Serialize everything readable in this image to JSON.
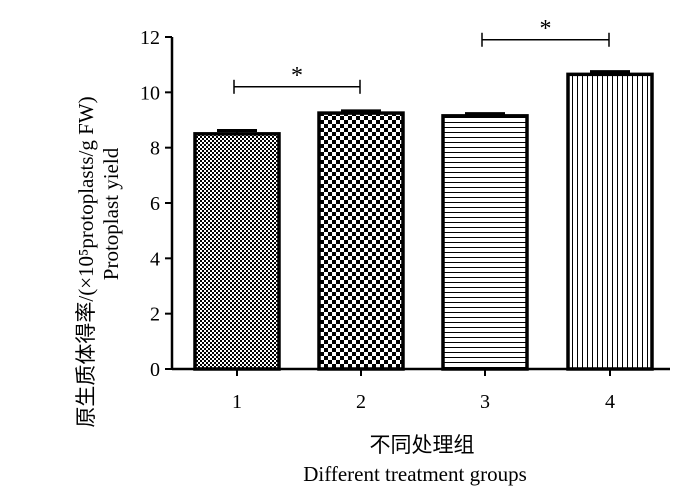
{
  "chart_data": {
    "type": "bar",
    "categories": [
      "1",
      "2",
      "3",
      "4"
    ],
    "values": [
      8.5,
      9.25,
      9.15,
      10.65
    ],
    "error": [
      0.12,
      0.08,
      0.08,
      0.1
    ],
    "patterns": [
      "fine-check",
      "coarse-check",
      "horizontal-lines",
      "vertical-lines"
    ],
    "xlabel_cn": "不同处理组",
    "xlabel_en": "Different treatment groups",
    "ylabel_cn": "原生质体得率/(×10⁵protoplasts/g FW)",
    "ylabel_en": "Protoplast yield",
    "ylim": [
      0,
      12
    ],
    "yticks": [
      0,
      2,
      4,
      6,
      8,
      10,
      12
    ],
    "significance": [
      {
        "from": 0,
        "to": 1,
        "y": 10.2,
        "label": "*"
      },
      {
        "from": 2,
        "to": 3,
        "y": 11.9,
        "label": "*"
      }
    ],
    "grid": false,
    "legend": "none",
    "colors": {
      "stroke": "#000000",
      "fill": "#ffffff"
    }
  }
}
